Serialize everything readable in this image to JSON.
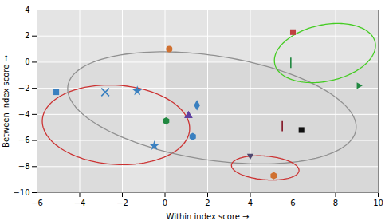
{
  "chart_data": {
    "type": "scatter",
    "xlabel": "Within index score",
    "ylabel": "Between index score",
    "xlim": [
      -6,
      10
    ],
    "ylim": [
      -10,
      4
    ],
    "xticks": [
      -6,
      -4,
      -2,
      0,
      2,
      4,
      6,
      8,
      10
    ],
    "yticks": [
      -10,
      -8,
      -6,
      -4,
      -2,
      0,
      2,
      4
    ],
    "grid": true,
    "points": [
      {
        "x": 0.2,
        "y": 1.0,
        "marker": "circle",
        "color": "#d07030"
      },
      {
        "x": -5.1,
        "y": -2.3,
        "marker": "square",
        "color": "#3a80c0"
      },
      {
        "x": -2.8,
        "y": -2.3,
        "marker": "times",
        "color": "#3a80c0"
      },
      {
        "x": -1.3,
        "y": -2.2,
        "marker": "star",
        "color": "#3a80c0"
      },
      {
        "x": 1.5,
        "y": -3.3,
        "marker": "diamond",
        "color": "#3a80c0"
      },
      {
        "x": 1.1,
        "y": -4.1,
        "marker": "triangle",
        "color": "#6040a0"
      },
      {
        "x": 0.05,
        "y": -4.5,
        "marker": "hexagon",
        "color": "#208840"
      },
      {
        "x": -0.5,
        "y": -6.4,
        "marker": "star",
        "color": "#3a80c0"
      },
      {
        "x": 1.3,
        "y": -5.7,
        "marker": "hexagon",
        "color": "#3a80c0"
      },
      {
        "x": 6.0,
        "y": 2.3,
        "marker": "square",
        "color": "#c04040"
      },
      {
        "x": 9.1,
        "y": -1.8,
        "marker": "triangle-right",
        "color": "#208840"
      },
      {
        "x": 5.9,
        "y": -0.05,
        "marker": "vline",
        "color": "#208840"
      },
      {
        "x": 6.4,
        "y": -5.2,
        "marker": "square",
        "color": "#101010"
      },
      {
        "x": 5.5,
        "y": -4.9,
        "marker": "vline",
        "color": "#801020"
      },
      {
        "x": 4.0,
        "y": -7.2,
        "marker": "triangle-down",
        "color": "#504870"
      },
      {
        "x": 5.1,
        "y": -8.7,
        "marker": "hexagon",
        "color": "#d07030"
      }
    ],
    "ellipses": [
      {
        "cx": -2.3,
        "cy": -4.8,
        "width": 7.0,
        "height": 6.0,
        "angle": -18,
        "color": "#cc3333"
      },
      {
        "cx": 2.2,
        "cy": -3.5,
        "width": 14.0,
        "height": 7.8,
        "angle": -18,
        "color": "#909090"
      },
      {
        "cx": 7.5,
        "cy": 0.7,
        "width": 4.0,
        "height": 5.2,
        "angle": -50,
        "color": "#44cc22"
      },
      {
        "cx": 4.7,
        "cy": -8.1,
        "width": 3.2,
        "height": 1.8,
        "angle": -10,
        "color": "#cc3333"
      }
    ],
    "shade_regions": [
      {
        "x0": -6,
        "x1": -2,
        "color": "#dcdcdc"
      },
      {
        "x0": -2,
        "x1": 0,
        "color": "#e4e4e4"
      },
      {
        "x0": 0,
        "x1": 10,
        "color": "#d8d8d8"
      }
    ],
    "bands": [
      {
        "y0": 0,
        "y1": 4,
        "color": "#e4e4e4"
      }
    ]
  }
}
